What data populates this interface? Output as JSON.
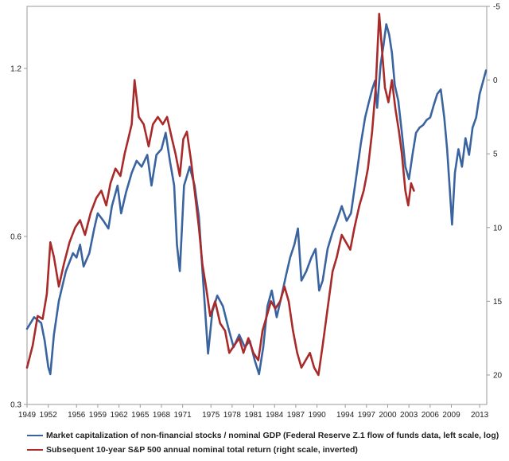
{
  "colors": {
    "blue": "#3a64a0",
    "red": "#a82a2a"
  },
  "chart_data": {
    "type": "line",
    "x_ticks": [
      "1949",
      "1952",
      "1956",
      "1959",
      "1962",
      "1965",
      "1968",
      "1971",
      "1975",
      "1978",
      "1981",
      "1984",
      "1987",
      "1990",
      "1994",
      "1997",
      "2000",
      "2003",
      "2006",
      "2009",
      "2013"
    ],
    "xlim": [
      1949,
      2014
    ],
    "left_axis": {
      "scale": "log",
      "ticks": [
        "0.3",
        "0.6",
        "1.2"
      ],
      "ylim": [
        0.3,
        1.55
      ]
    },
    "right_axis": {
      "inverted": true,
      "ticks": [
        "-5",
        "0",
        "5",
        "10",
        "15",
        "20"
      ],
      "ylim": [
        22,
        -5
      ]
    },
    "legend_placement": "bottom",
    "series": [
      {
        "name": "Market capitalization of non-financial stocks / nominal GDP (Federal Reserve Z.1 flow of funds data, left scale, log)",
        "axis": "left",
        "color": "#3a64a0",
        "points": [
          [
            1949.0,
            0.41
          ],
          [
            1950.0,
            0.43
          ],
          [
            1951.0,
            0.42
          ],
          [
            1951.5,
            0.39
          ],
          [
            1952.0,
            0.35
          ],
          [
            1952.3,
            0.34
          ],
          [
            1952.8,
            0.4
          ],
          [
            1953.5,
            0.46
          ],
          [
            1954.5,
            0.52
          ],
          [
            1955.5,
            0.56
          ],
          [
            1956.0,
            0.55
          ],
          [
            1956.5,
            0.58
          ],
          [
            1957.0,
            0.53
          ],
          [
            1957.8,
            0.56
          ],
          [
            1958.5,
            0.62
          ],
          [
            1959.0,
            0.66
          ],
          [
            1959.8,
            0.64
          ],
          [
            1960.5,
            0.62
          ],
          [
            1961.0,
            0.68
          ],
          [
            1961.8,
            0.74
          ],
          [
            1962.3,
            0.66
          ],
          [
            1963.0,
            0.72
          ],
          [
            1963.8,
            0.78
          ],
          [
            1964.5,
            0.82
          ],
          [
            1965.2,
            0.8
          ],
          [
            1966.0,
            0.84
          ],
          [
            1966.6,
            0.74
          ],
          [
            1967.3,
            0.84
          ],
          [
            1968.0,
            0.86
          ],
          [
            1968.6,
            0.92
          ],
          [
            1969.2,
            0.82
          ],
          [
            1969.8,
            0.74
          ],
          [
            1970.2,
            0.58
          ],
          [
            1970.6,
            0.52
          ],
          [
            1971.2,
            0.74
          ],
          [
            1972.0,
            0.8
          ],
          [
            1972.7,
            0.74
          ],
          [
            1973.3,
            0.65
          ],
          [
            1973.9,
            0.5
          ],
          [
            1974.6,
            0.37
          ],
          [
            1975.2,
            0.44
          ],
          [
            1975.9,
            0.47
          ],
          [
            1976.7,
            0.45
          ],
          [
            1977.5,
            0.41
          ],
          [
            1978.2,
            0.38
          ],
          [
            1979.0,
            0.4
          ],
          [
            1979.8,
            0.38
          ],
          [
            1980.5,
            0.39
          ],
          [
            1981.2,
            0.36
          ],
          [
            1981.8,
            0.34
          ],
          [
            1982.4,
            0.38
          ],
          [
            1983.0,
            0.45
          ],
          [
            1983.6,
            0.48
          ],
          [
            1984.3,
            0.43
          ],
          [
            1985.0,
            0.47
          ],
          [
            1985.6,
            0.51
          ],
          [
            1986.2,
            0.55
          ],
          [
            1986.8,
            0.58
          ],
          [
            1987.3,
            0.62
          ],
          [
            1987.8,
            0.5
          ],
          [
            1988.5,
            0.52
          ],
          [
            1989.2,
            0.55
          ],
          [
            1989.8,
            0.57
          ],
          [
            1990.3,
            0.48
          ],
          [
            1990.8,
            0.5
          ],
          [
            1991.5,
            0.57
          ],
          [
            1992.2,
            0.61
          ],
          [
            1992.8,
            0.64
          ],
          [
            1993.5,
            0.68
          ],
          [
            1994.2,
            0.64
          ],
          [
            1994.8,
            0.66
          ],
          [
            1995.5,
            0.76
          ],
          [
            1996.2,
            0.88
          ],
          [
            1996.8,
            0.98
          ],
          [
            1997.3,
            1.04
          ],
          [
            1997.8,
            1.1
          ],
          [
            1998.2,
            1.14
          ],
          [
            1998.5,
            1.02
          ],
          [
            1999.0,
            1.22
          ],
          [
            1999.4,
            1.32
          ],
          [
            1999.8,
            1.44
          ],
          [
            2000.2,
            1.38
          ],
          [
            2000.6,
            1.28
          ],
          [
            2001.0,
            1.12
          ],
          [
            2001.5,
            1.05
          ],
          [
            2002.0,
            0.92
          ],
          [
            2002.5,
            0.8
          ],
          [
            2003.0,
            0.76
          ],
          [
            2003.5,
            0.84
          ],
          [
            2004.0,
            0.92
          ],
          [
            2004.5,
            0.94
          ],
          [
            2005.0,
            0.95
          ],
          [
            2005.5,
            0.97
          ],
          [
            2006.0,
            0.98
          ],
          [
            2006.5,
            1.03
          ],
          [
            2007.0,
            1.08
          ],
          [
            2007.5,
            1.1
          ],
          [
            2008.0,
            0.98
          ],
          [
            2008.4,
            0.86
          ],
          [
            2008.8,
            0.72
          ],
          [
            2009.1,
            0.63
          ],
          [
            2009.5,
            0.78
          ],
          [
            2010.0,
            0.86
          ],
          [
            2010.5,
            0.8
          ],
          [
            2011.0,
            0.9
          ],
          [
            2011.5,
            0.84
          ],
          [
            2012.0,
            0.94
          ],
          [
            2012.5,
            0.98
          ],
          [
            2013.0,
            1.08
          ],
          [
            2013.5,
            1.14
          ],
          [
            2013.9,
            1.19
          ]
        ]
      },
      {
        "name": "Subsequent 10-year S&P 500 annual nominal total return (right scale, inverted)",
        "axis": "right",
        "color": "#a82a2a",
        "points": [
          [
            1949.0,
            19.5
          ],
          [
            1949.8,
            18.0
          ],
          [
            1950.5,
            16.0
          ],
          [
            1951.2,
            16.2
          ],
          [
            1951.8,
            14.5
          ],
          [
            1952.3,
            11.0
          ],
          [
            1952.8,
            12.0
          ],
          [
            1953.5,
            14.0
          ],
          [
            1954.2,
            12.5
          ],
          [
            1955.0,
            11.0
          ],
          [
            1955.8,
            10.0
          ],
          [
            1956.5,
            9.5
          ],
          [
            1957.2,
            10.5
          ],
          [
            1958.0,
            9.0
          ],
          [
            1958.8,
            8.0
          ],
          [
            1959.5,
            7.5
          ],
          [
            1960.2,
            8.5
          ],
          [
            1960.8,
            7.0
          ],
          [
            1961.5,
            6.0
          ],
          [
            1962.2,
            6.5
          ],
          [
            1962.8,
            5.0
          ],
          [
            1963.3,
            4.0
          ],
          [
            1963.8,
            3.0
          ],
          [
            1964.2,
            0.0
          ],
          [
            1964.8,
            2.5
          ],
          [
            1965.5,
            3.0
          ],
          [
            1966.2,
            4.5
          ],
          [
            1966.8,
            3.0
          ],
          [
            1967.5,
            2.5
          ],
          [
            1968.2,
            3.0
          ],
          [
            1968.8,
            2.5
          ],
          [
            1969.5,
            4.0
          ],
          [
            1970.0,
            5.0
          ],
          [
            1970.6,
            6.5
          ],
          [
            1971.1,
            4.0
          ],
          [
            1971.6,
            3.5
          ],
          [
            1972.2,
            5.5
          ],
          [
            1972.7,
            7.5
          ],
          [
            1973.3,
            10.0
          ],
          [
            1973.8,
            12.5
          ],
          [
            1974.3,
            14.0
          ],
          [
            1974.9,
            16.0
          ],
          [
            1975.6,
            15.0
          ],
          [
            1976.3,
            16.5
          ],
          [
            1977.0,
            17.0
          ],
          [
            1977.6,
            18.5
          ],
          [
            1978.3,
            18.0
          ],
          [
            1979.0,
            17.5
          ],
          [
            1979.6,
            18.5
          ],
          [
            1980.3,
            17.5
          ],
          [
            1981.0,
            18.5
          ],
          [
            1981.7,
            19.0
          ],
          [
            1982.3,
            17.0
          ],
          [
            1982.9,
            16.0
          ],
          [
            1983.5,
            15.0
          ],
          [
            1984.1,
            15.5
          ],
          [
            1984.8,
            15.0
          ],
          [
            1985.4,
            14.0
          ],
          [
            1986.0,
            15.0
          ],
          [
            1986.6,
            17.0
          ],
          [
            1987.2,
            18.5
          ],
          [
            1987.8,
            19.5
          ],
          [
            1988.4,
            19.0
          ],
          [
            1989.0,
            18.5
          ],
          [
            1989.6,
            19.5
          ],
          [
            1990.2,
            20.0
          ],
          [
            1990.8,
            18.0
          ],
          [
            1991.5,
            15.5
          ],
          [
            1992.2,
            13.0
          ],
          [
            1992.8,
            12.0
          ],
          [
            1993.5,
            10.5
          ],
          [
            1994.1,
            11.0
          ],
          [
            1994.7,
            11.5
          ],
          [
            1995.3,
            10.0
          ],
          [
            1996.0,
            8.5
          ],
          [
            1996.6,
            7.5
          ],
          [
            1997.2,
            6.0
          ],
          [
            1997.8,
            3.5
          ],
          [
            1998.3,
            0.5
          ],
          [
            1998.8,
            -4.5
          ],
          [
            1999.2,
            -2.0
          ],
          [
            1999.6,
            0.5
          ],
          [
            2000.1,
            1.5
          ],
          [
            2000.6,
            0.0
          ],
          [
            2001.1,
            2.0
          ],
          [
            2001.6,
            3.5
          ],
          [
            2002.0,
            5.0
          ],
          [
            2002.5,
            7.5
          ],
          [
            2002.9,
            8.5
          ],
          [
            2003.3,
            7.0
          ],
          [
            2003.7,
            7.5
          ]
        ]
      }
    ]
  }
}
